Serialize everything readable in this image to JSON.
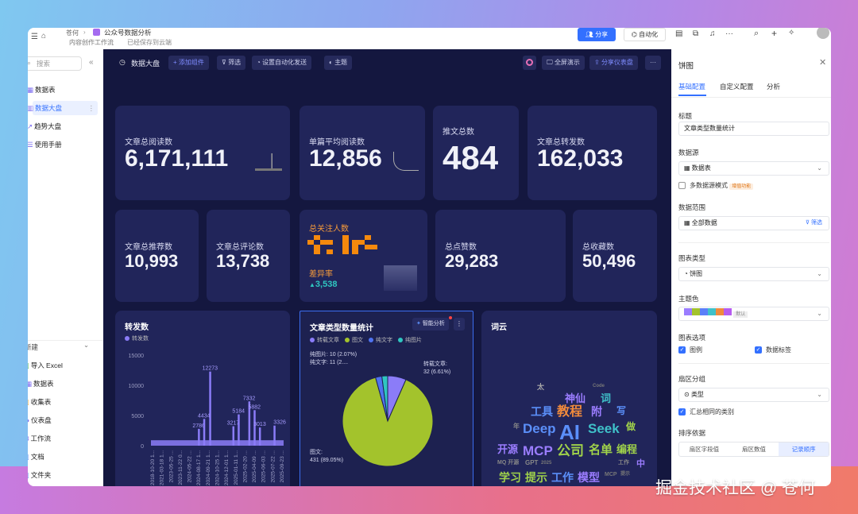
{
  "topbar": {
    "breadcrumb_root": "苍何",
    "doc_title": "公众号数据分析",
    "folder": "内容创作工作流",
    "save_status": "已经保存到云端",
    "share_label": "分享",
    "automation_label": "自动化"
  },
  "sidebar": {
    "search_placeholder": "搜索",
    "items": [
      {
        "label": "数据表"
      },
      {
        "label": "数据大盘",
        "active": true
      },
      {
        "label": "趋势大盘"
      },
      {
        "label": "使用手册"
      }
    ],
    "new_label": "新建",
    "new_items": [
      {
        "label": "导入 Excel"
      },
      {
        "label": "数据表"
      },
      {
        "label": "收集表"
      },
      {
        "label": "仪表盘"
      },
      {
        "label": "工作流"
      },
      {
        "label": "文档"
      },
      {
        "label": "文件夹"
      }
    ]
  },
  "dashboard": {
    "title": "数据大盘",
    "toolbar": {
      "add": "+ 添加组件",
      "filter": "筛选",
      "auto_send": "设置自动化发送",
      "theme": "主题",
      "fullscreen": "全屏演示",
      "share": "分享仪表盘",
      "more": "···"
    },
    "metrics": [
      {
        "label": "文章总阅读数",
        "value": "6,171,111"
      },
      {
        "label": "单篇平均阅读数",
        "value": "12,856"
      },
      {
        "label": "推文总数",
        "value": "484"
      },
      {
        "label": "文章总转发数",
        "value": "162,033"
      },
      {
        "label": "文章总推荐数",
        "value": "10,993"
      },
      {
        "label": "文章总评论数",
        "value": "13,738"
      },
      {
        "label": "总点赞数",
        "value": "29,283"
      },
      {
        "label": "总收藏数",
        "value": "50,496"
      }
    ],
    "followers": {
      "label": "总关注人数",
      "diff_label": "差异率",
      "diff_value": "3,538"
    },
    "wordcloud_title": "词云",
    "smart_analysis": "智能分析",
    "wordcloud": [
      {
        "t": "AI",
        "c": "#5b8ff9"
      },
      {
        "t": "Deep",
        "c": "#5b8ff9"
      },
      {
        "t": "Seek",
        "c": "#3fc1c9"
      },
      {
        "t": "公司",
        "c": "#a0d24a"
      },
      {
        "t": "MCP",
        "c": "#9b7dff"
      },
      {
        "t": "名单",
        "c": "#a0d24a"
      },
      {
        "t": "教程",
        "c": "#f08a3c"
      },
      {
        "t": "神仙",
        "c": "#9b7dff"
      },
      {
        "t": "工具",
        "c": "#5b8ff9"
      },
      {
        "t": "模型",
        "c": "#9b7dff"
      },
      {
        "t": "提示",
        "c": "#a0d24a"
      },
      {
        "t": "工作",
        "c": "#5b8ff9"
      },
      {
        "t": "开源",
        "c": "#9b7dff"
      },
      {
        "t": "学习",
        "c": "#a0d24a"
      },
      {
        "t": "编程",
        "c": "#a0d24a"
      },
      {
        "t": "词",
        "c": "#3fc1c9"
      },
      {
        "t": "附",
        "c": "#9b7dff"
      },
      {
        "t": "写",
        "c": "#5b8ff9"
      },
      {
        "t": "做",
        "c": "#a0d24a"
      },
      {
        "t": "中",
        "c": "#9b7dff"
      },
      {
        "t": "太",
        "c": "#aaa"
      },
      {
        "t": "GPT",
        "c": "#888"
      },
      {
        "t": "Code",
        "c": "#777"
      },
      {
        "t": "MQ 开源",
        "c": "#888"
      },
      {
        "t": "年",
        "c": "#888"
      },
      {
        "t": "MCP",
        "c": "#777"
      },
      {
        "t": "2025",
        "c": "#777"
      },
      {
        "t": "工作",
        "c": "#888"
      },
      {
        "t": "提示",
        "c": "#777"
      }
    ]
  },
  "chart_data": [
    {
      "type": "bar",
      "title": "转发数",
      "legend": [
        "转发数"
      ],
      "ylim": [
        0,
        15000
      ],
      "yticks": [
        "15000",
        "10000",
        "5000",
        "0"
      ],
      "categories": [
        "2018-10-20 1...",
        "2021-03-18 1...",
        "2023-05-25 ...",
        "2023-11-22 0...",
        "2024-05-22 ...",
        "2024-08-17 1...",
        "2024-09-21 1...",
        "2024-10-25 1...",
        "2024-12-01 1...",
        "2025-01-11 1...",
        "2025-02-20 ...",
        "2025-04-09 ...",
        "2025-06-03 ...",
        "2025-07-22 ...",
        "2025-09-23 ..."
      ],
      "labeled_peaks": [
        {
          "v": 2786,
          "pos": 0.36
        },
        {
          "v": 4434,
          "pos": 0.4
        },
        {
          "v": 12273,
          "pos": 0.445
        },
        {
          "v": 3217,
          "pos": 0.62
        },
        {
          "v": 5184,
          "pos": 0.66
        },
        {
          "v": 7332,
          "pos": 0.74
        },
        {
          "v": 5882,
          "pos": 0.78
        },
        {
          "v": 3013,
          "pos": 0.82
        },
        {
          "v": 3326,
          "pos": 0.93
        }
      ],
      "color": "#8b7cf8"
    },
    {
      "type": "pie",
      "title": "文章类型数量统计",
      "series": [
        {
          "name": "转载文章",
          "value": 32,
          "pct": "6.61%",
          "color": "#8b7cf8"
        },
        {
          "name": "图文",
          "value": 431,
          "pct": "89.05%",
          "color": "#a3c32c"
        },
        {
          "name": "纯文字",
          "value": 11,
          "pct": "2...",
          "color": "#4f73f0"
        },
        {
          "name": "纯图片",
          "value": 10,
          "pct": "2.07%",
          "color": "#2fc6c0"
        }
      ],
      "labels": {
        "repost": "转载文章:",
        "repost_v": "32 (6.61%)",
        "pic": "图文:",
        "pic_v": "431 (89.05%)",
        "text": "纯文字: 11 (2....",
        "img": "纯图片: 10 (2.07%)"
      }
    }
  ],
  "panel": {
    "title": "饼图",
    "tabs": [
      "基础配置",
      "自定义配置",
      "分析"
    ],
    "title_label": "标题",
    "title_value": "文章类型数量统计",
    "source_label": "数据源",
    "source_value": "数据表",
    "multi_source": "多数据源模式",
    "badge": "增值功能",
    "range_label": "数据范围",
    "range_value": "全部数据",
    "range_filter": "筛选",
    "type_label": "图表类型",
    "type_value": "饼图",
    "color_label": "主题色",
    "color_default": "默认",
    "palette": [
      "#9b7dff",
      "#a3c32c",
      "#5b7ff9",
      "#3fc1c9",
      "#f08a3c",
      "#b65cf0"
    ],
    "options_label": "图表选项",
    "opt_legend": "图例",
    "opt_labels": "数据标签",
    "group_label": "扇区分组",
    "group_value": "类型",
    "merge_same": "汇总相同的类别",
    "sort_label": "排序依据",
    "sort_options": [
      "扇区字段值",
      "扇区数值",
      "记录顺序"
    ],
    "sort_selected": 2
  },
  "watermark": "掘金技术社区 @ 苍何"
}
